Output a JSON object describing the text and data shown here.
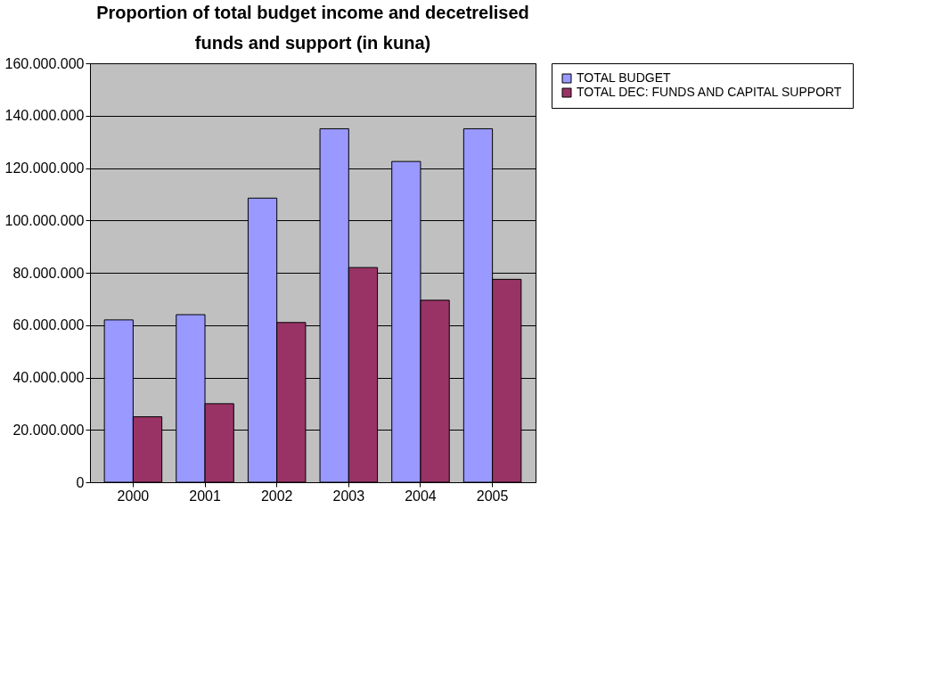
{
  "chart_data": {
    "type": "bar",
    "title": "Proportion of total budget income and decetrelised  funds and support (in kuna)",
    "categories": [
      "2000",
      "2001",
      "2002",
      "2003",
      "2004",
      "2005"
    ],
    "series": [
      {
        "name": "TOTAL BUDGET",
        "color": "#9999ff",
        "values": [
          62000000,
          64000000,
          108500000,
          135000000,
          122500000,
          135000000
        ]
      },
      {
        "name": "TOTAL DEC: FUNDS AND CAPITAL SUPPORT",
        "color": "#993366",
        "values": [
          25000000,
          30000000,
          61000000,
          82000000,
          69500000,
          77500000
        ]
      }
    ],
    "ylim": [
      0,
      160000000
    ],
    "yticks": [
      0,
      {
        "value": 20000000,
        "label": "20.000.000"
      },
      {
        "value": 40000000,
        "label": "40.000.000"
      },
      {
        "value": 60000000,
        "label": "60.000.000"
      },
      {
        "value": 80000000,
        "label": "80.000.000"
      },
      {
        "value": 100000000,
        "label": "100.000.000"
      },
      {
        "value": 120000000,
        "label": "120.000.000"
      },
      {
        "value": 140000000,
        "label": "140.000.000"
      },
      {
        "value": 160000000,
        "label": "160.000.000"
      }
    ],
    "grid": "y",
    "legend": "right"
  }
}
